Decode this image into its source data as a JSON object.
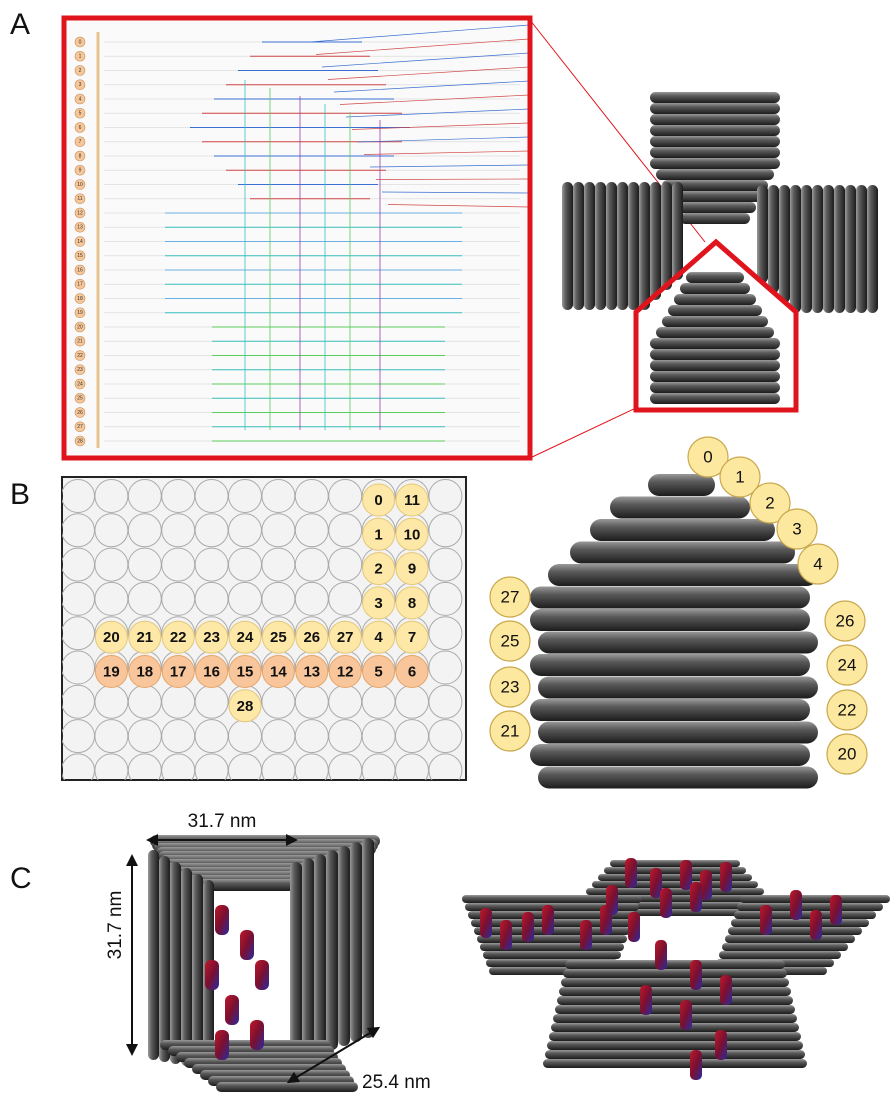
{
  "panel_labels": [
    "A",
    "B",
    "C"
  ],
  "panel_a": {
    "helix_numbers": [
      "0",
      "1",
      "2",
      "3",
      "4",
      "5",
      "6",
      "7",
      "8",
      "9",
      "10",
      "11",
      "12",
      "13",
      "14",
      "15",
      "16",
      "17",
      "18",
      "19",
      "20",
      "21",
      "22",
      "23",
      "24",
      "25",
      "26",
      "27",
      "28"
    ]
  },
  "panel_b": {
    "lattice_helices": [
      "0",
      "11",
      "1",
      "10",
      "2",
      "9",
      "3",
      "8",
      "20",
      "21",
      "22",
      "23",
      "24",
      "25",
      "26",
      "27",
      "4",
      "7",
      "19",
      "18",
      "17",
      "16",
      "15",
      "14",
      "13",
      "12",
      "5",
      "6",
      "28"
    ],
    "side_helices": [
      "0",
      "1",
      "2",
      "3",
      "4",
      "27",
      "25",
      "23",
      "21",
      "26",
      "24",
      "22",
      "20"
    ]
  },
  "panel_c": {
    "dimensions": [
      "31.7 nm",
      "31.7 nm",
      "25.4 nm"
    ]
  }
}
